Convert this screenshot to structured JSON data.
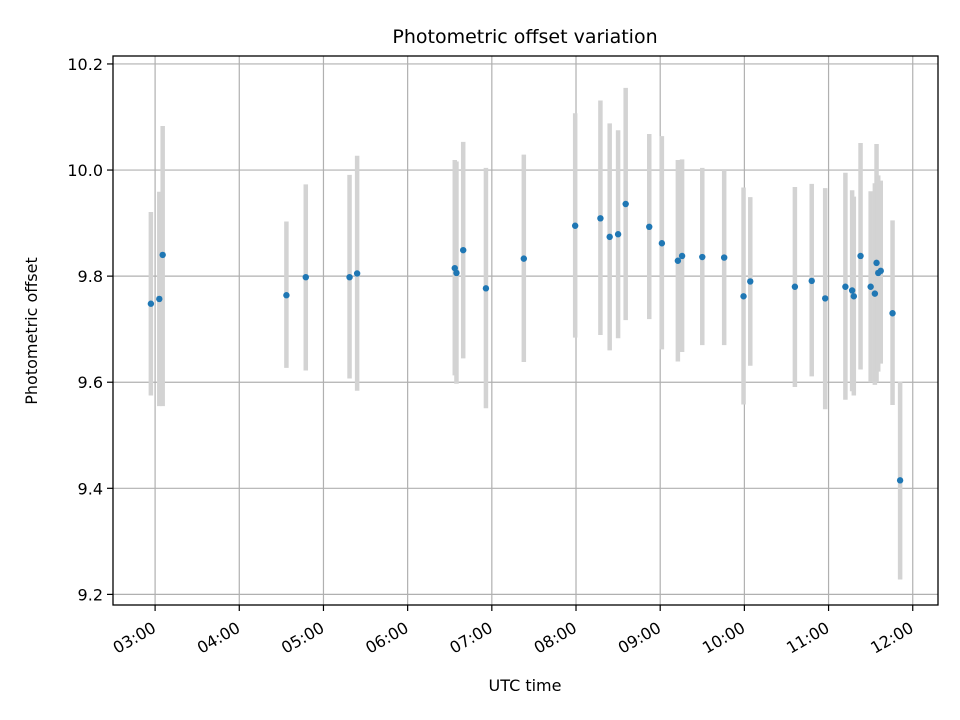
{
  "chart_data": {
    "type": "scatter",
    "title": "Photometric offset variation",
    "xlabel": "UTC time",
    "ylabel": "Photometric offset",
    "x_unit": "UTC hour",
    "xlim": [
      2.5,
      12.3
    ],
    "ylim": [
      9.18,
      10.215
    ],
    "x_ticks": [
      {
        "value": 3,
        "label": "03:00"
      },
      {
        "value": 4,
        "label": "04:00"
      },
      {
        "value": 5,
        "label": "05:00"
      },
      {
        "value": 6,
        "label": "06:00"
      },
      {
        "value": 7,
        "label": "07:00"
      },
      {
        "value": 8,
        "label": "08:00"
      },
      {
        "value": 9,
        "label": "09:00"
      },
      {
        "value": 10,
        "label": "10:00"
      },
      {
        "value": 11,
        "label": "11:00"
      },
      {
        "value": 12,
        "label": "12:00"
      }
    ],
    "y_ticks": [
      {
        "value": 9.2,
        "label": "9.2"
      },
      {
        "value": 9.4,
        "label": "9.4"
      },
      {
        "value": 9.6,
        "label": "9.6"
      },
      {
        "value": 9.8,
        "label": "9.8"
      },
      {
        "value": 10.0,
        "label": "10.0"
      },
      {
        "value": 10.2,
        "label": "10.2"
      }
    ],
    "grid": true,
    "colors": {
      "marker": "#1f77b4",
      "errorbar": "#d3d3d3",
      "grid": "#b0b0b0"
    },
    "points": [
      {
        "x": 2.95,
        "y": 9.748,
        "lo": 9.575,
        "hi": 9.921
      },
      {
        "x": 3.05,
        "y": 9.757,
        "lo": 9.555,
        "hi": 9.959
      },
      {
        "x": 3.09,
        "y": 9.84,
        "lo": 9.555,
        "hi": 10.083
      },
      {
        "x": 4.56,
        "y": 9.764,
        "lo": 9.627,
        "hi": 9.903
      },
      {
        "x": 4.79,
        "y": 9.798,
        "lo": 9.622,
        "hi": 9.973
      },
      {
        "x": 5.31,
        "y": 9.798,
        "lo": 9.607,
        "hi": 9.991
      },
      {
        "x": 5.4,
        "y": 9.805,
        "lo": 9.584,
        "hi": 10.027
      },
      {
        "x": 6.56,
        "y": 9.815,
        "lo": 9.613,
        "hi": 10.019
      },
      {
        "x": 6.58,
        "y": 9.806,
        "lo": 9.597,
        "hi": 10.016
      },
      {
        "x": 6.66,
        "y": 9.849,
        "lo": 9.645,
        "hi": 10.053
      },
      {
        "x": 6.93,
        "y": 9.777,
        "lo": 9.551,
        "hi": 10.004
      },
      {
        "x": 7.38,
        "y": 9.833,
        "lo": 9.638,
        "hi": 10.029
      },
      {
        "x": 7.99,
        "y": 9.895,
        "lo": 9.684,
        "hi": 10.107
      },
      {
        "x": 8.29,
        "y": 9.909,
        "lo": 9.689,
        "hi": 10.131
      },
      {
        "x": 8.4,
        "y": 9.874,
        "lo": 9.66,
        "hi": 10.088
      },
      {
        "x": 8.5,
        "y": 9.879,
        "lo": 9.683,
        "hi": 10.075
      },
      {
        "x": 8.59,
        "y": 9.936,
        "lo": 9.717,
        "hi": 10.155
      },
      {
        "x": 8.87,
        "y": 9.893,
        "lo": 9.719,
        "hi": 10.068
      },
      {
        "x": 9.02,
        "y": 9.862,
        "lo": 9.662,
        "hi": 10.064
      },
      {
        "x": 9.21,
        "y": 9.829,
        "lo": 9.639,
        "hi": 10.019
      },
      {
        "x": 9.26,
        "y": 9.838,
        "lo": 9.657,
        "hi": 10.02
      },
      {
        "x": 9.5,
        "y": 9.836,
        "lo": 9.67,
        "hi": 10.004
      },
      {
        "x": 9.76,
        "y": 9.835,
        "lo": 9.67,
        "hi": 10.0
      },
      {
        "x": 9.99,
        "y": 9.762,
        "lo": 9.558,
        "hi": 9.967
      },
      {
        "x": 10.07,
        "y": 9.79,
        "lo": 9.631,
        "hi": 9.949
      },
      {
        "x": 10.6,
        "y": 9.78,
        "lo": 9.591,
        "hi": 9.968
      },
      {
        "x": 10.8,
        "y": 9.791,
        "lo": 9.611,
        "hi": 9.974
      },
      {
        "x": 10.96,
        "y": 9.758,
        "lo": 9.549,
        "hi": 9.966
      },
      {
        "x": 11.2,
        "y": 9.78,
        "lo": 9.567,
        "hi": 9.995
      },
      {
        "x": 11.28,
        "y": 9.773,
        "lo": 9.583,
        "hi": 9.962
      },
      {
        "x": 11.3,
        "y": 9.762,
        "lo": 9.575,
        "hi": 9.95
      },
      {
        "x": 11.38,
        "y": 9.838,
        "lo": 9.624,
        "hi": 10.051
      },
      {
        "x": 11.5,
        "y": 9.78,
        "lo": 9.6,
        "hi": 9.96
      },
      {
        "x": 11.55,
        "y": 9.767,
        "lo": 9.595,
        "hi": 9.975
      },
      {
        "x": 11.57,
        "y": 9.825,
        "lo": 9.6,
        "hi": 10.049
      },
      {
        "x": 11.59,
        "y": 9.806,
        "lo": 9.62,
        "hi": 9.99
      },
      {
        "x": 11.62,
        "y": 9.81,
        "lo": 9.635,
        "hi": 9.98
      },
      {
        "x": 11.76,
        "y": 9.73,
        "lo": 9.557,
        "hi": 9.905
      },
      {
        "x": 11.85,
        "y": 9.415,
        "lo": 9.228,
        "hi": 9.601
      }
    ]
  }
}
